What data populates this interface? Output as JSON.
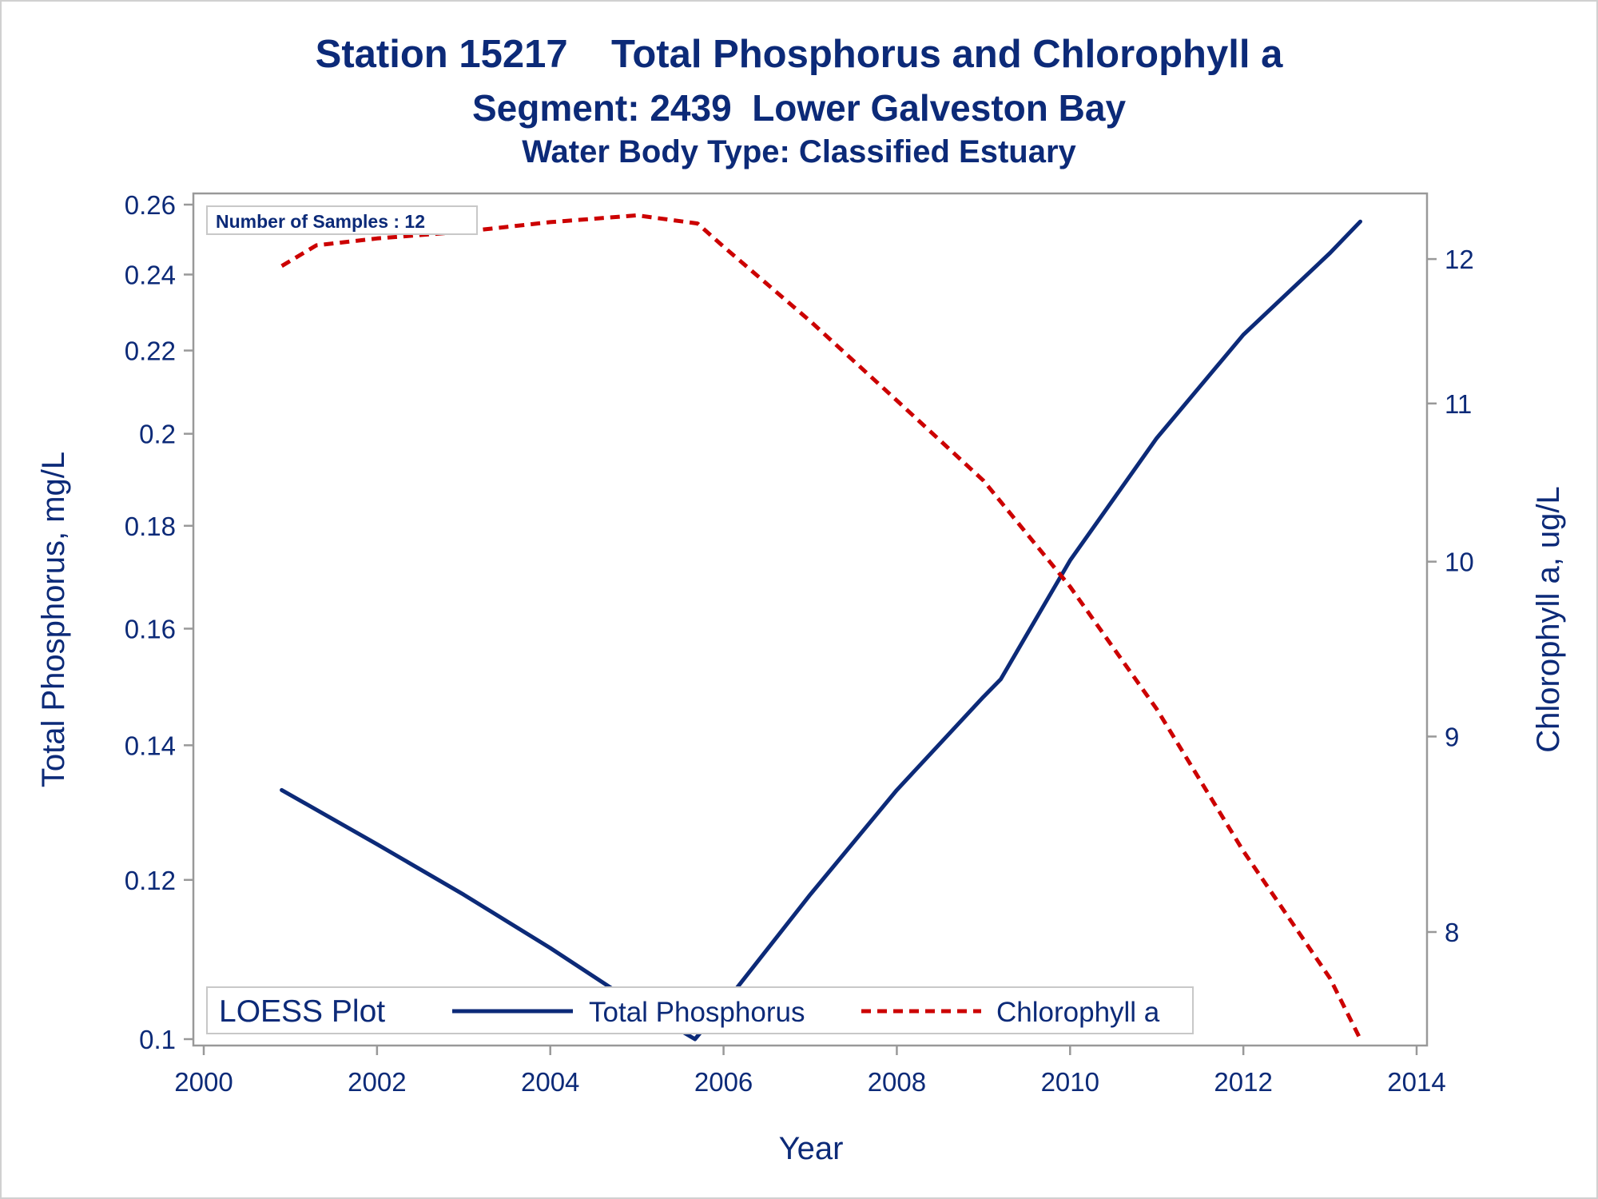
{
  "titles": {
    "line1": "Station 15217    Total Phosphorus and Chlorophyll a",
    "line2": "Segment: 2439  Lower Galveston Bay",
    "line3": "Water Body Type: Classified Estuary"
  },
  "inset": {
    "label": "Number of Samples : 12"
  },
  "legend": {
    "title": "LOESS Plot",
    "items": [
      {
        "label": "Total Phosphorus",
        "color": "#0c2a78",
        "style": "solid"
      },
      {
        "label": "Chlorophyll a",
        "color": "#cc0000",
        "style": "dashed"
      }
    ],
    "placement": "bottom-inside"
  },
  "colors": {
    "text": "#0c2a78",
    "frame": "#999999",
    "phosphorus": "#0c2a78",
    "chlorophyll": "#cc0000"
  },
  "chart_data": {
    "type": "line",
    "xlabel": "Year",
    "ylabel": "Total Phosphorus, mg/L",
    "y2label": "Chlorophyll a, ug/L",
    "xlim": [
      2000,
      2014
    ],
    "ylim": [
      0.1,
      0.26
    ],
    "yscale": "log",
    "y2lim": [
      7.5,
      12.4
    ],
    "y2scale": "log",
    "x_ticks": [
      "2000",
      "2002",
      "2004",
      "2006",
      "2008",
      "2010",
      "2012",
      "2014"
    ],
    "y_ticks": [
      "0.1",
      "0.12",
      "0.14",
      "0.16",
      "0.18",
      "0.2",
      "0.22",
      "0.24",
      "0.26"
    ],
    "y2_ticks": [
      "8",
      "9",
      "10",
      "11",
      "12"
    ],
    "grid": false,
    "series": [
      {
        "name": "Total Phosphorus",
        "axis": "left",
        "x": [
          2000.9,
          2002.0,
          2003.0,
          2004.0,
          2005.0,
          2005.67,
          2006.0,
          2007.0,
          2008.0,
          2009.0,
          2009.2,
          2010.0,
          2011.0,
          2012.0,
          2013.0,
          2013.35
        ],
        "values": [
          0.133,
          0.125,
          0.118,
          0.111,
          0.104,
          0.1,
          0.104,
          0.118,
          0.133,
          0.148,
          0.151,
          0.173,
          0.199,
          0.224,
          0.246,
          0.255
        ]
      },
      {
        "name": "Chlorophyll a",
        "axis": "right",
        "x": [
          2000.9,
          2001.3,
          2002.0,
          2003.0,
          2004.0,
          2005.0,
          2005.7,
          2006.0,
          2007.0,
          2008.0,
          2009.0,
          2010.0,
          2011.0,
          2012.0,
          2013.0,
          2013.35
        ],
        "values": [
          11.95,
          12.1,
          12.15,
          12.2,
          12.27,
          12.32,
          12.26,
          12.09,
          11.56,
          11.02,
          10.5,
          9.85,
          9.15,
          8.4,
          7.78,
          7.5
        ]
      }
    ]
  }
}
